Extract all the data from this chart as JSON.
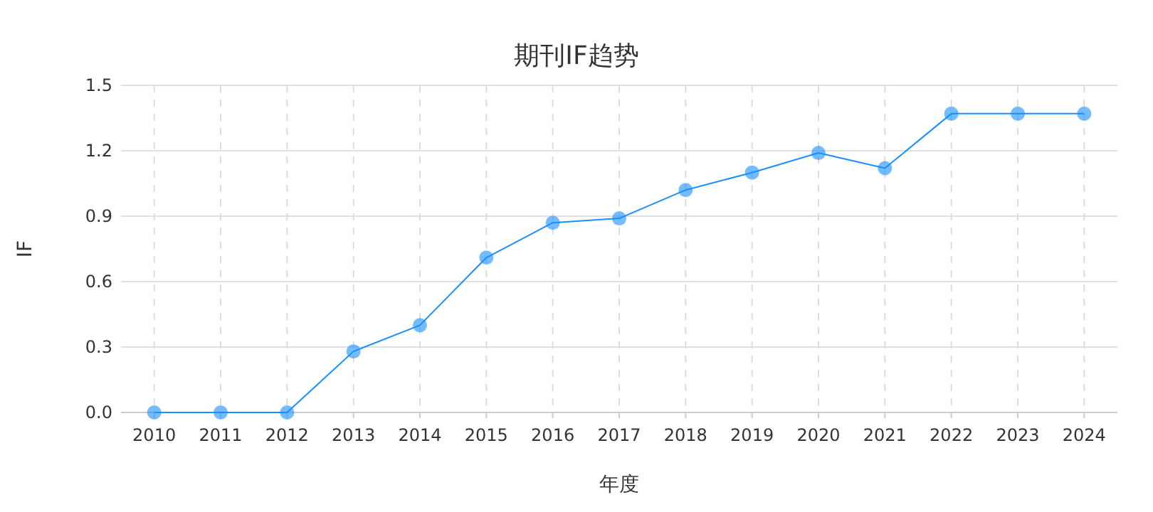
{
  "chart_data": {
    "type": "line",
    "title": "期刊IF趋势",
    "xlabel": "年度",
    "ylabel": "IF",
    "categories": [
      "2010",
      "2011",
      "2012",
      "2013",
      "2014",
      "2015",
      "2016",
      "2017",
      "2018",
      "2019",
      "2020",
      "2021",
      "2022",
      "2023",
      "2024"
    ],
    "series": [
      {
        "color": "#1890ff",
        "values": [
          0,
          0,
          0,
          0.28,
          0.4,
          0.71,
          0.87,
          0.89,
          1.02,
          1.1,
          1.19,
          1.12,
          1.37,
          1.37,
          1.37
        ]
      }
    ],
    "ylim": [
      0,
      1.5
    ],
    "yticks": [
      {
        "value": 0,
        "label": "0.0"
      },
      {
        "value": 0.3,
        "label": "0.3"
      },
      {
        "value": 0.6,
        "label": "0.6"
      },
      {
        "value": 0.9,
        "label": "0.9"
      },
      {
        "value": 1.2,
        "label": "1.2"
      },
      {
        "value": 1.5,
        "label": "1.5"
      }
    ],
    "grid": true,
    "marker": "circle",
    "line_style": "solid"
  }
}
